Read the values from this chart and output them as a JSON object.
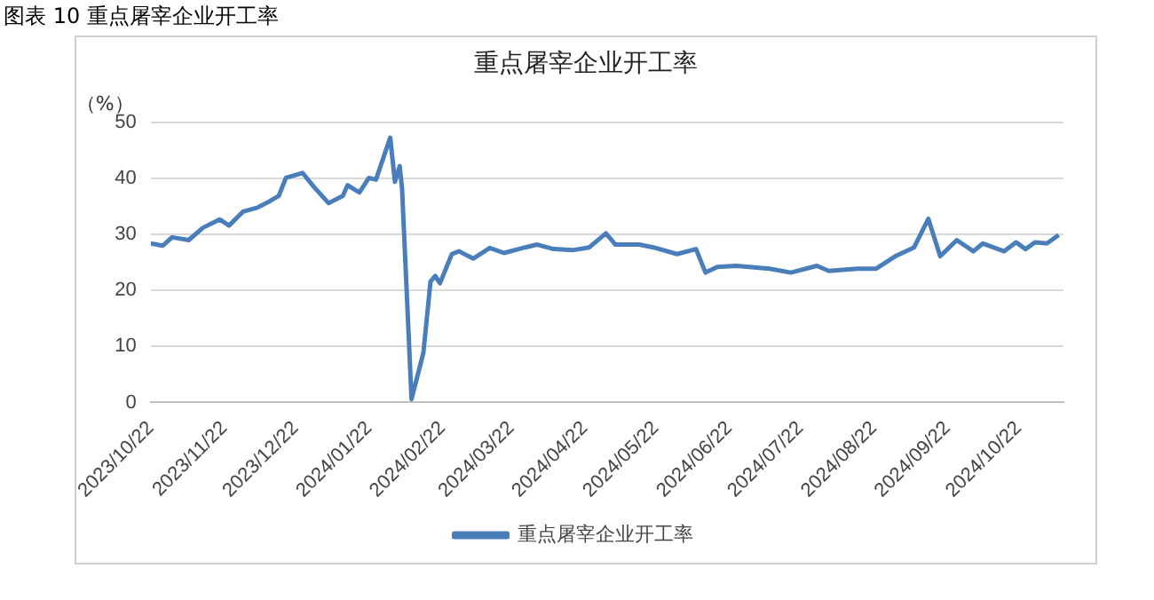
{
  "chart_data": {
    "type": "line",
    "title": "图表 10 重点屠宰企业开工率",
    "subtitle": "重点屠宰企业开工率",
    "ylabel": "（%）",
    "x": [
      "2023-10-22",
      "2023-10-27",
      "2023-10-31",
      "2023-11-07",
      "2023-11-13",
      "2023-11-20",
      "2023-11-24",
      "2023-11-30",
      "2023-12-06",
      "2023-12-11",
      "2023-12-15",
      "2023-12-18",
      "2023-12-25",
      "2023-12-30",
      "2024-01-05",
      "2024-01-11",
      "2024-01-13",
      "2024-01-18",
      "2024-01-22",
      "2024-01-25",
      "2024-01-31",
      "2024-02-02",
      "2024-02-04",
      "2024-02-05",
      "2024-02-09",
      "2024-02-14",
      "2024-02-17",
      "2024-02-19",
      "2024-02-21",
      "2024-02-26",
      "2024-02-29",
      "2024-03-06",
      "2024-03-13",
      "2024-03-19",
      "2024-03-28",
      "2024-04-02",
      "2024-04-09",
      "2024-04-17",
      "2024-04-24",
      "2024-05-01",
      "2024-05-05",
      "2024-05-15",
      "2024-05-21",
      "2024-05-31",
      "2024-06-08",
      "2024-06-12",
      "2024-06-17",
      "2024-06-25",
      "2024-07-09",
      "2024-07-18",
      "2024-07-29",
      "2024-08-03",
      "2024-08-15",
      "2024-08-23",
      "2024-08-31",
      "2024-09-08",
      "2024-09-14",
      "2024-09-19",
      "2024-09-26",
      "2024-10-03",
      "2024-10-07",
      "2024-10-16",
      "2024-10-21",
      "2024-10-25",
      "2024-10-29",
      "2024-11-03",
      "2024-11-08"
    ],
    "series": [
      {
        "name": "重点屠宰企业开工率",
        "color": "#4a7ebb",
        "values": [
          28.4,
          28.0,
          29.5,
          29.0,
          31.2,
          32.7,
          31.6,
          34.1,
          34.8,
          35.9,
          36.9,
          40.1,
          41.0,
          38.4,
          35.6,
          36.9,
          38.8,
          37.5,
          40.1,
          39.8,
          47.3,
          39.4,
          42.2,
          38.2,
          0.6,
          8.9,
          21.6,
          22.6,
          21.3,
          26.5,
          27.0,
          25.7,
          27.6,
          26.7,
          27.7,
          28.2,
          27.4,
          27.2,
          27.7,
          30.2,
          28.2,
          28.2,
          27.7,
          26.5,
          27.4,
          23.2,
          24.2,
          24.4,
          23.9,
          23.2,
          24.4,
          23.5,
          23.9,
          23.9,
          26.1,
          27.7,
          32.8,
          26.1,
          29.0,
          27.0,
          28.4,
          27.0,
          28.6,
          27.4,
          28.6,
          28.4,
          29.9
        ]
      }
    ],
    "xlim": [
      "2023-10-22",
      "2024-11-10"
    ],
    "xticks": [
      {
        "value": "2023-10-22",
        "label": "2023/10/22"
      },
      {
        "value": "2023-11-22",
        "label": "2023/11/22"
      },
      {
        "value": "2023-12-22",
        "label": "2023/12/22"
      },
      {
        "value": "2024-01-22",
        "label": "2024/01/22"
      },
      {
        "value": "2024-02-22",
        "label": "2024/02/22"
      },
      {
        "value": "2024-03-22",
        "label": "2024/03/22"
      },
      {
        "value": "2024-04-22",
        "label": "2024/04/22"
      },
      {
        "value": "2024-05-22",
        "label": "2024/05/22"
      },
      {
        "value": "2024-06-22",
        "label": "2024/06/22"
      },
      {
        "value": "2024-07-22",
        "label": "2024/07/22"
      },
      {
        "value": "2024-08-22",
        "label": "2024/08/22"
      },
      {
        "value": "2024-09-22",
        "label": "2024/09/22"
      },
      {
        "value": "2024-10-22",
        "label": "2024/10/22"
      }
    ],
    "ylim": [
      0,
      50
    ],
    "yticks": [
      0,
      10,
      20,
      30,
      40,
      50
    ],
    "grid": "y",
    "legend": "bottom",
    "marker": "none",
    "line_style": "solid"
  }
}
